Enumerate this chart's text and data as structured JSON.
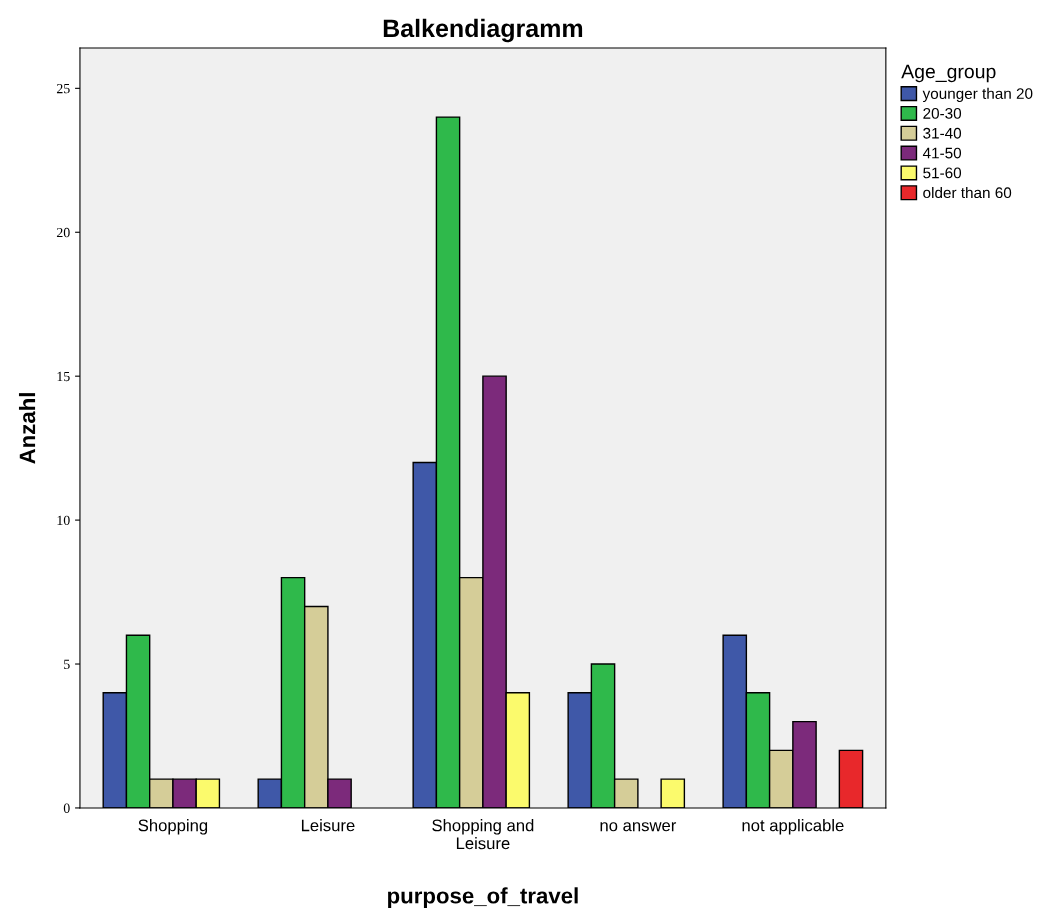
{
  "chart_data": {
    "type": "bar",
    "title": "Balkendiagramm",
    "xlabel": "purpose_of_travel",
    "ylabel": "Anzahl",
    "legend_title": "Age_group",
    "categories": [
      "Shopping",
      "Leisure",
      "Shopping and\nLeisure",
      "no answer",
      "not applicable"
    ],
    "series": [
      {
        "name": "younger than 20",
        "color": "#3f58a8",
        "values": [
          4,
          1,
          12,
          4,
          6
        ]
      },
      {
        "name": "20-30",
        "color": "#2fb94b",
        "values": [
          6,
          8,
          24,
          5,
          4
        ]
      },
      {
        "name": "31-40",
        "color": "#d5cd98",
        "values": [
          1,
          7,
          8,
          1,
          2
        ]
      },
      {
        "name": "41-50",
        "color": "#7c2a7b",
        "values": [
          1,
          1,
          15,
          null,
          3
        ]
      },
      {
        "name": "51-60",
        "color": "#fbfa6c",
        "values": [
          1,
          null,
          4,
          1,
          null
        ]
      },
      {
        "name": "older than 60",
        "color": "#e8282b",
        "values": [
          null,
          null,
          null,
          null,
          2
        ]
      }
    ],
    "ylim": [
      0,
      26.4
    ],
    "yticks": [
      0,
      5,
      10,
      15,
      20,
      25
    ],
    "grid": false,
    "legend": "top right"
  }
}
